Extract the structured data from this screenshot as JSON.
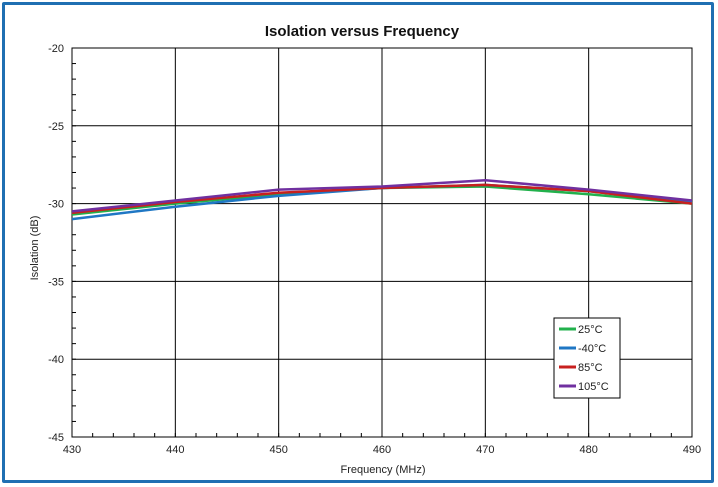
{
  "chart_data": {
    "type": "line",
    "title": "Isolation versus Frequency",
    "xlabel": "Frequency (MHz)",
    "ylabel": "Isolation (dB)",
    "xlim": [
      430,
      490
    ],
    "ylim": [
      -45,
      -20
    ],
    "x_ticks": [
      430,
      440,
      450,
      460,
      470,
      480,
      490
    ],
    "y_ticks": [
      -45,
      -40,
      -35,
      -30,
      -25,
      -20
    ],
    "grid": true,
    "legend_position": "bottom-right",
    "x": [
      430,
      440,
      450,
      460,
      470,
      480,
      490
    ],
    "series": [
      {
        "name": "25°C",
        "color": "#22b14c",
        "values": [
          -30.7,
          -30.0,
          -29.4,
          -29.0,
          -28.9,
          -29.4,
          -30.0
        ]
      },
      {
        "name": "-40°C",
        "color": "#1f77c4",
        "values": [
          -31.0,
          -30.2,
          -29.5,
          -29.0,
          -28.8,
          -29.2,
          -29.9
        ]
      },
      {
        "name": "85°C",
        "color": "#c8201f",
        "values": [
          -30.6,
          -29.9,
          -29.3,
          -29.0,
          -28.8,
          -29.2,
          -30.0
        ]
      },
      {
        "name": "105°C",
        "color": "#7030a0",
        "values": [
          -30.5,
          -29.8,
          -29.1,
          -28.9,
          -28.5,
          -29.1,
          -29.8
        ]
      }
    ]
  }
}
